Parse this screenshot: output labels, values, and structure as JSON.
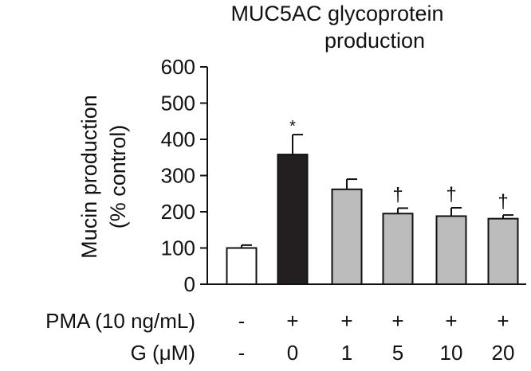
{
  "chart_data": {
    "type": "bar",
    "title_lines": [
      "MUC5AC glycoprotein",
      "production"
    ],
    "ylabel_lines": [
      "Mucin production",
      "(% control)"
    ],
    "ylim": [
      0,
      600
    ],
    "yticks": [
      0,
      100,
      200,
      300,
      400,
      500,
      600
    ],
    "values": [
      100,
      358,
      262,
      195,
      188,
      181
    ],
    "errors": [
      8,
      55,
      28,
      15,
      23,
      10
    ],
    "fills": [
      "#ffffff",
      "#231f20",
      "#bcbcbc",
      "#bcbcbc",
      "#bcbcbc",
      "#bcbcbc"
    ],
    "annotations": [
      "",
      "*",
      "",
      "†",
      "†",
      "†"
    ],
    "conditions": [
      {
        "label": "PMA (10 ng/mL)",
        "values": [
          "-",
          "+",
          "+",
          "+",
          "+",
          "+"
        ]
      },
      {
        "label": "G (μM)",
        "values": [
          "-",
          "0",
          "1",
          "5",
          "10",
          "20"
        ]
      }
    ]
  }
}
